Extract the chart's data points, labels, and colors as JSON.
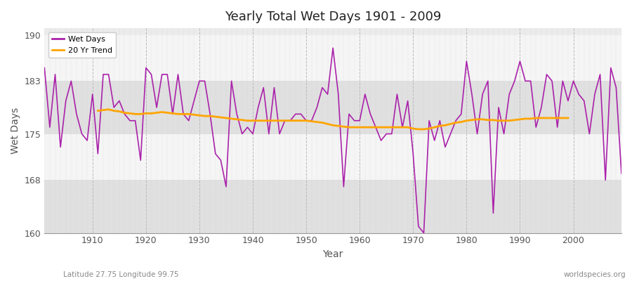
{
  "title": "Yearly Total Wet Days 1901 - 2009",
  "xlabel": "Year",
  "ylabel": "Wet Days",
  "ylim": [
    160,
    191
  ],
  "xlim": [
    1901,
    2009
  ],
  "yticks": [
    160,
    168,
    175,
    183,
    190
  ],
  "xticks": [
    1910,
    1920,
    1930,
    1940,
    1950,
    1960,
    1970,
    1980,
    1990,
    2000
  ],
  "wet_days_color": "#aa22aa",
  "trend_color": "#ffa500",
  "fig_bg_color": "#ffffff",
  "plot_bg_color": "#f0f0f0",
  "bottom_label_left": "Latitude 27.75 Longitude 99.75",
  "bottom_label_right": "worldspecies.org",
  "years": [
    1901,
    1902,
    1903,
    1904,
    1905,
    1906,
    1907,
    1908,
    1909,
    1910,
    1911,
    1912,
    1913,
    1914,
    1915,
    1916,
    1917,
    1918,
    1919,
    1920,
    1921,
    1922,
    1923,
    1924,
    1925,
    1926,
    1927,
    1928,
    1929,
    1930,
    1931,
    1932,
    1933,
    1934,
    1935,
    1936,
    1937,
    1938,
    1939,
    1940,
    1941,
    1942,
    1943,
    1944,
    1945,
    1946,
    1947,
    1948,
    1949,
    1950,
    1951,
    1952,
    1953,
    1954,
    1955,
    1956,
    1957,
    1958,
    1959,
    1960,
    1961,
    1962,
    1963,
    1964,
    1965,
    1966,
    1967,
    1968,
    1969,
    1970,
    1971,
    1972,
    1973,
    1974,
    1975,
    1976,
    1977,
    1978,
    1979,
    1980,
    1981,
    1982,
    1983,
    1984,
    1985,
    1986,
    1987,
    1988,
    1989,
    1990,
    1991,
    1992,
    1993,
    1994,
    1995,
    1996,
    1997,
    1998,
    1999,
    2000,
    2001,
    2002,
    2003,
    2004,
    2005,
    2006,
    2007,
    2008,
    2009
  ],
  "wet_days": [
    185,
    176,
    184,
    173,
    180,
    183,
    178,
    175,
    174,
    181,
    172,
    184,
    184,
    179,
    180,
    178,
    177,
    177,
    171,
    185,
    184,
    179,
    184,
    184,
    178,
    184,
    178,
    177,
    180,
    183,
    183,
    178,
    172,
    171,
    167,
    183,
    178,
    175,
    176,
    175,
    179,
    182,
    175,
    182,
    175,
    177,
    177,
    178,
    178,
    177,
    177,
    179,
    182,
    181,
    188,
    181,
    167,
    178,
    177,
    177,
    181,
    178,
    176,
    174,
    175,
    175,
    181,
    176,
    180,
    172,
    161,
    160,
    177,
    174,
    177,
    173,
    175,
    177,
    178,
    186,
    181,
    175,
    181,
    183,
    163,
    179,
    175,
    181,
    183,
    186,
    183,
    183,
    176,
    179,
    184,
    183,
    176,
    183,
    180,
    183,
    181,
    180,
    175,
    181,
    184,
    168,
    185,
    182,
    169
  ],
  "trend_years": [
    1911,
    1912,
    1913,
    1914,
    1915,
    1916,
    1917,
    1918,
    1919,
    1920,
    1921,
    1922,
    1923,
    1924,
    1925,
    1926,
    1927,
    1928,
    1929,
    1930,
    1931,
    1932,
    1933,
    1934,
    1935,
    1936,
    1937,
    1938,
    1939,
    1940,
    1941,
    1942,
    1943,
    1944,
    1945,
    1946,
    1947,
    1948,
    1949,
    1950,
    1951,
    1952,
    1953,
    1954,
    1955,
    1956,
    1957,
    1958,
    1959,
    1960,
    1961,
    1962,
    1963,
    1964,
    1965,
    1966,
    1967,
    1968,
    1969,
    1970,
    1971,
    1972,
    1973,
    1974,
    1975,
    1976,
    1977,
    1978,
    1979,
    1980,
    1981,
    1982,
    1983,
    1984,
    1985,
    1986,
    1987,
    1988,
    1989,
    1990,
    1991,
    1992,
    1993,
    1994,
    1995,
    1996,
    1997,
    1998,
    1999
  ],
  "trend": [
    178.5,
    178.6,
    178.7,
    178.5,
    178.4,
    178.2,
    178.1,
    178.0,
    178.0,
    178.1,
    178.1,
    178.2,
    178.3,
    178.2,
    178.1,
    178.0,
    178.0,
    178.0,
    177.9,
    177.8,
    177.7,
    177.7,
    177.6,
    177.5,
    177.4,
    177.3,
    177.2,
    177.1,
    177.0,
    177.0,
    177.0,
    177.0,
    177.0,
    177.0,
    177.0,
    177.0,
    177.0,
    177.0,
    177.0,
    177.0,
    176.9,
    176.8,
    176.7,
    176.5,
    176.3,
    176.2,
    176.1,
    176.0,
    176.0,
    176.0,
    176.0,
    176.0,
    176.0,
    176.0,
    176.0,
    176.0,
    176.0,
    176.0,
    176.0,
    175.8,
    175.7,
    175.7,
    175.8,
    176.0,
    176.2,
    176.3,
    176.5,
    176.7,
    176.8,
    177.0,
    177.1,
    177.2,
    177.2,
    177.1,
    177.1,
    177.0,
    177.0,
    177.0,
    177.1,
    177.2,
    177.3,
    177.3,
    177.4,
    177.4,
    177.4,
    177.4,
    177.4,
    177.4,
    177.4
  ]
}
